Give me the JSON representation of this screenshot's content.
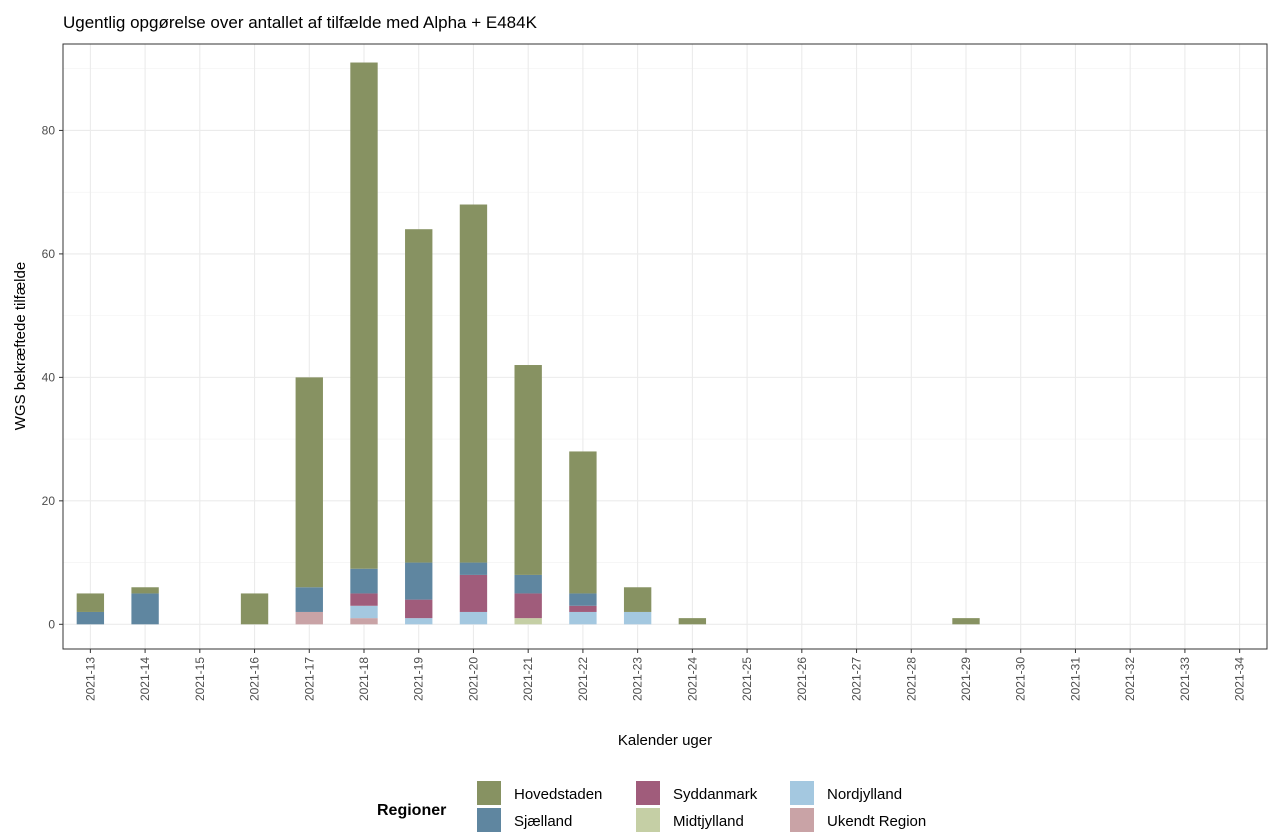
{
  "chart_data": {
    "type": "bar",
    "stacked": true,
    "title": "Ugentlig opgørelse over antallet af tilfælde med Alpha + E484K",
    "xlabel": "Kalender uger",
    "ylabel": "WGS bekræftede tilfælde",
    "ylim": [
      -4,
      94
    ],
    "yticks": [
      0,
      20,
      40,
      60,
      80
    ],
    "grid": true,
    "categories": [
      "2021-13",
      "2021-14",
      "2021-15",
      "2021-16",
      "2021-17",
      "2021-18",
      "2021-19",
      "2021-20",
      "2021-21",
      "2021-22",
      "2021-23",
      "2021-24",
      "2021-25",
      "2021-26",
      "2021-27",
      "2021-28",
      "2021-29",
      "2021-30",
      "2021-31",
      "2021-32",
      "2021-33",
      "2021-34"
    ],
    "series": [
      {
        "name": "Ukendt Region",
        "color": "#c9a3a6",
        "values": [
          0,
          0,
          0,
          0,
          2,
          1,
          0,
          0,
          0,
          0,
          0,
          0,
          0,
          0,
          0,
          0,
          0,
          0,
          0,
          0,
          0,
          0
        ]
      },
      {
        "name": "Midtjylland",
        "color": "#c5cfa5",
        "values": [
          0,
          0,
          0,
          0,
          0,
          0,
          0,
          0,
          1,
          0,
          0,
          0,
          0,
          0,
          0,
          0,
          0,
          0,
          0,
          0,
          0,
          0
        ]
      },
      {
        "name": "Nordjylland",
        "color": "#a4c8e0",
        "values": [
          0,
          0,
          0,
          0,
          0,
          2,
          1,
          2,
          0,
          2,
          2,
          0,
          0,
          0,
          0,
          0,
          0,
          0,
          0,
          0,
          0,
          0
        ]
      },
      {
        "name": "Syddanmark",
        "color": "#a05c7b",
        "values": [
          0,
          0,
          0,
          0,
          0,
          2,
          3,
          6,
          4,
          1,
          0,
          0,
          0,
          0,
          0,
          0,
          0,
          0,
          0,
          0,
          0,
          0
        ]
      },
      {
        "name": "Sjælland",
        "color": "#5f86a0",
        "values": [
          2,
          5,
          0,
          0,
          4,
          4,
          6,
          2,
          3,
          2,
          0,
          0,
          0,
          0,
          0,
          0,
          0,
          0,
          0,
          0,
          0,
          0
        ]
      },
      {
        "name": "Hovedstaden",
        "color": "#879262",
        "values": [
          3,
          1,
          0,
          5,
          34,
          82,
          54,
          58,
          34,
          23,
          4,
          1,
          0,
          0,
          0,
          0,
          1,
          0,
          0,
          0,
          0,
          0
        ]
      }
    ],
    "legend": {
      "title": "Regioner",
      "position": "bottom",
      "order": [
        "Hovedstaden",
        "Sjælland",
        "Syddanmark",
        "Midtjylland",
        "Nordjylland",
        "Ukendt Region"
      ]
    }
  }
}
